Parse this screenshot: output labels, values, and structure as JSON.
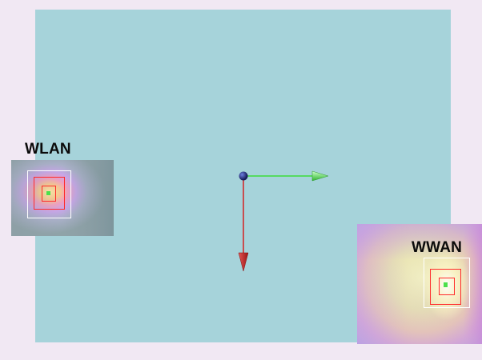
{
  "scene": {
    "background_color": "#f1e8f3",
    "viewport_color": "#a6d3da",
    "axes": {
      "origin_color": "#2f3fa6",
      "x_axis_color": "#3bdc3b",
      "y_axis_color": "#d32222"
    }
  },
  "overlays": [
    {
      "id": "wlan",
      "label": "WLAN",
      "marker_colors": {
        "outer_box": "#ffffff",
        "inner_boxes": "#ff2a2a",
        "center_dot": "#4be04b"
      }
    },
    {
      "id": "wwan",
      "label": "WWAN",
      "marker_colors": {
        "outer_box": "#ffffff",
        "inner_boxes": "#ff2a2a",
        "center_dot": "#4be04b"
      }
    }
  ]
}
